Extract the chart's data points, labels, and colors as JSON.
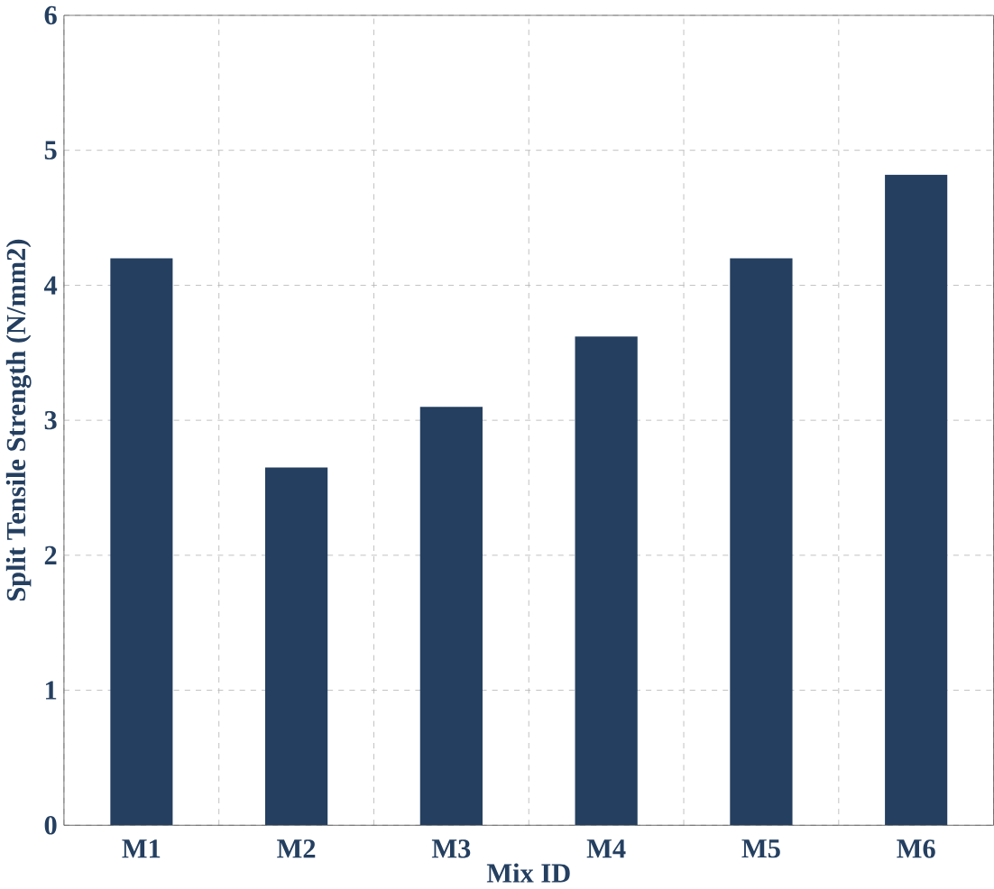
{
  "chart_data": {
    "type": "bar",
    "xlabel": "Mix ID",
    "ylabel": "Split Tensile Strength (N/mm2)",
    "categories": [
      "M1",
      "M2",
      "M3",
      "M4",
      "M5",
      "M6"
    ],
    "values": [
      4.2,
      2.65,
      3.1,
      3.62,
      4.2,
      4.82
    ],
    "color": "#243f60",
    "ylim": [
      0,
      6
    ],
    "yticks": [
      0,
      1,
      2,
      3,
      4,
      5,
      6
    ],
    "grid": true
  }
}
